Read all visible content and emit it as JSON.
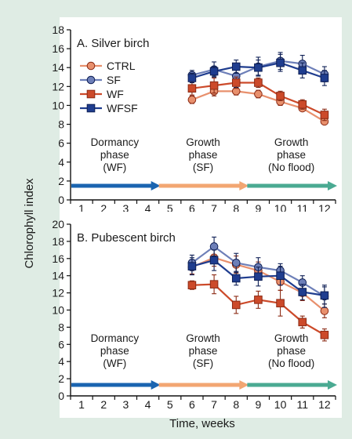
{
  "figure": {
    "ylabel": "Chlorophyll index",
    "xlabel": "Time, weeks"
  },
  "colors": {
    "background": "#dfece4",
    "panel": "#ffffff",
    "CTRL": "#e8906d",
    "SF": "#6d7fb8",
    "WF": "#cc4a2a",
    "WFSF": "#1f3d8f",
    "marker_edge": "#8b2a14",
    "marker_edge_blue": "#0e1f55",
    "phase_dormancy": "#1a64b0",
    "phase_growth_sf": "#f2a672",
    "phase_growth_noflood": "#4aaa92"
  },
  "chart_data": [
    {
      "type": "line",
      "title": "A. Silver birch",
      "xlabel": "Time, weeks",
      "ylabel": "Chlorophyll index",
      "categories": [
        "1",
        "2",
        "3",
        "4",
        "5",
        "6",
        "7",
        "8",
        "9",
        "10",
        "11",
        "12"
      ],
      "x": [
        6,
        7,
        8,
        9,
        10,
        11,
        12
      ],
      "ylim": [
        0,
        18
      ],
      "yticks": [
        0,
        2,
        4,
        6,
        8,
        10,
        12,
        14,
        16,
        18
      ],
      "grid": false,
      "legend": "top-left",
      "series": [
        {
          "name": "CTRL",
          "marker": "circle",
          "values": [
            10.6,
            11.5,
            11.5,
            11.2,
            10.4,
            9.7,
            8.3
          ],
          "errors": [
            0.4,
            0.5,
            0.4,
            0.4,
            0.4,
            0.3,
            0.3
          ]
        },
        {
          "name": "SF",
          "marker": "circle",
          "values": [
            13.2,
            13.8,
            13.1,
            14.1,
            14.7,
            14.4,
            13.3
          ],
          "errors": [
            0.5,
            0.8,
            1.2,
            1.0,
            0.9,
            0.9,
            0.8
          ]
        },
        {
          "name": "WF",
          "marker": "square",
          "values": [
            11.8,
            12.1,
            12.4,
            12.4,
            11.0,
            10.1,
            9.0
          ],
          "errors": [
            0.7,
            0.8,
            0.6,
            0.5,
            0.5,
            0.5,
            0.6
          ]
        },
        {
          "name": "WFSF",
          "marker": "square",
          "values": [
            12.9,
            13.6,
            14.1,
            14.0,
            14.5,
            13.7,
            12.9
          ],
          "errors": [
            0.5,
            0.5,
            0.7,
            0.8,
            0.9,
            0.8,
            0.8
          ]
        }
      ],
      "phases": [
        {
          "lines": [
            "Dormancy",
            "phase",
            "(WF)"
          ],
          "from": 0,
          "to": 4,
          "color_key": "phase_dormancy"
        },
        {
          "lines": [
            "Growth",
            "phase",
            "(SF)"
          ],
          "from": 4,
          "to": 8,
          "color_key": "phase_growth_sf"
        },
        {
          "lines": [
            "Growth",
            "phase",
            "(No flood)"
          ],
          "from": 8,
          "to": 12,
          "color_key": "phase_growth_noflood"
        }
      ]
    },
    {
      "type": "line",
      "title": "B. Pubescent birch",
      "xlabel": "Time, weeks",
      "ylabel": "Chlorophyll index",
      "categories": [
        "1",
        "2",
        "3",
        "4",
        "5",
        "6",
        "7",
        "8",
        "9",
        "10",
        "11",
        "12"
      ],
      "x": [
        6,
        7,
        8,
        9,
        10,
        11,
        12
      ],
      "ylim": [
        0,
        20
      ],
      "yticks": [
        0,
        2,
        4,
        6,
        8,
        10,
        12,
        14,
        16,
        18,
        20
      ],
      "grid": false,
      "legend": "",
      "series": [
        {
          "name": "CTRL",
          "marker": "circle",
          "values": [
            15.0,
            16.1,
            15.3,
            14.6,
            13.3,
            12.0,
            9.9
          ],
          "errors": [
            0.8,
            1.0,
            1.0,
            1.0,
            1.0,
            0.9,
            0.8
          ]
        },
        {
          "name": "SF",
          "marker": "circle",
          "values": [
            15.5,
            17.4,
            15.5,
            15.0,
            14.6,
            13.2,
            11.6
          ],
          "errors": [
            0.9,
            1.1,
            1.1,
            1.1,
            0.8,
            0.8,
            1.3
          ]
        },
        {
          "name": "WF",
          "marker": "square",
          "values": [
            12.9,
            13.0,
            10.6,
            11.2,
            10.8,
            8.6,
            7.1
          ],
          "errors": [
            0.5,
            1.1,
            1.0,
            1.0,
            1.5,
            0.7,
            0.7
          ]
        },
        {
          "name": "WFSF",
          "marker": "square",
          "values": [
            15.1,
            15.8,
            13.7,
            13.9,
            14.0,
            12.1,
            11.7
          ],
          "errors": [
            1.0,
            1.2,
            0.8,
            1.1,
            1.1,
            0.9,
            1.0
          ]
        }
      ],
      "phases": [
        {
          "lines": [
            "Dormancy",
            "phase",
            "(WF)"
          ],
          "from": 0,
          "to": 4,
          "color_key": "phase_dormancy"
        },
        {
          "lines": [
            "Growth",
            "phase",
            "(SF)"
          ],
          "from": 4,
          "to": 8,
          "color_key": "phase_growth_sf"
        },
        {
          "lines": [
            "Growth",
            "phase",
            "(No flood)"
          ],
          "from": 8,
          "to": 12,
          "color_key": "phase_growth_noflood"
        }
      ]
    }
  ]
}
